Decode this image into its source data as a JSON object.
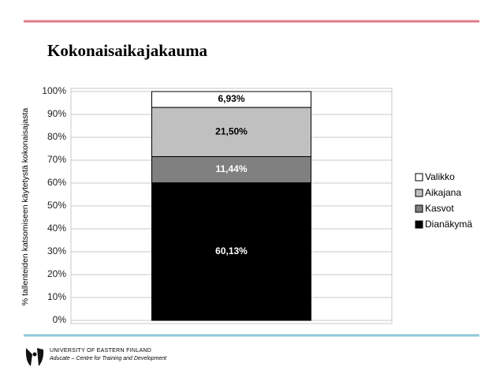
{
  "chart_data": {
    "type": "stacked_bar",
    "title": "Kokonaisaikajakauma",
    "y_label": "% tallenteiden katsomiseen käytetystä kokonaisajasta",
    "categories": [
      null
    ],
    "series": [
      {
        "name": "Dianäkymä",
        "color": "#000000",
        "values": [
          60.13
        ],
        "value_labels": [
          "60,13%"
        ]
      },
      {
        "name": "Kasvot",
        "color": "#808080",
        "values": [
          11.44
        ],
        "value_labels": [
          "11,44%"
        ]
      },
      {
        "name": "Aikajana",
        "color": "#c0c0c0",
        "values": [
          21.5
        ],
        "value_labels": [
          "21,50%"
        ]
      },
      {
        "name": "Valikko",
        "color": "#ffffff",
        "values": [
          6.93
        ],
        "value_labels": [
          "6,93%"
        ]
      }
    ],
    "ylim": [
      0,
      100
    ],
    "yticks": [
      {
        "value": 0,
        "label": "0%"
      },
      {
        "value": 10,
        "label": "10%"
      },
      {
        "value": 20,
        "label": "20%"
      },
      {
        "value": 30,
        "label": "30%"
      },
      {
        "value": 40,
        "label": "40%"
      },
      {
        "value": 50,
        "label": "50%"
      },
      {
        "value": 60,
        "label": "60%"
      },
      {
        "value": 70,
        "label": "70%"
      },
      {
        "value": 80,
        "label": "80%"
      },
      {
        "value": 90,
        "label": "90%"
      },
      {
        "value": 100,
        "label": "100%"
      }
    ],
    "grid": true,
    "legend": "right"
  },
  "footer": {
    "university": "UNIVERSITY OF EASTERN FINLAND",
    "unit": "Aducate – Centre for Training and Development"
  }
}
